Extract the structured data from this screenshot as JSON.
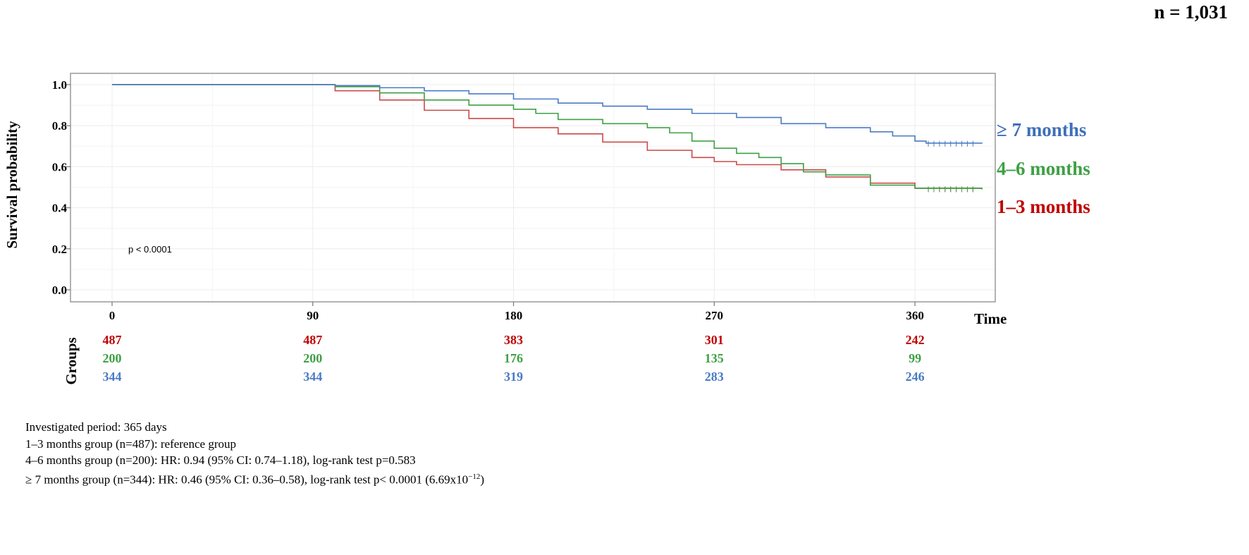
{
  "sample_size_label": "n = 1,031",
  "chart_data": {
    "type": "line",
    "title": "",
    "xlabel": "Time",
    "ylabel": "Survival probability",
    "xlim": [
      0,
      390
    ],
    "ylim": [
      0,
      1
    ],
    "x_ticks": [
      "0",
      "90",
      "180",
      "270",
      "360"
    ],
    "y_ticks": [
      "0.0",
      "0.2",
      "0.4",
      "0.6",
      "0.8",
      "1.0"
    ],
    "annotation": "p < 0.0001",
    "grid": true,
    "legend_position": "right",
    "series": [
      {
        "name": "≥ 7 months",
        "color": "#4a7bc4",
        "x": [
          0,
          90,
          100,
          120,
          140,
          160,
          180,
          200,
          220,
          240,
          260,
          280,
          300,
          320,
          340,
          350,
          360,
          365,
          390
        ],
        "y": [
          1.0,
          1.0,
          0.995,
          0.985,
          0.97,
          0.955,
          0.93,
          0.91,
          0.895,
          0.88,
          0.86,
          0.84,
          0.81,
          0.79,
          0.77,
          0.75,
          0.725,
          0.715,
          0.712
        ]
      },
      {
        "name": "4–6 months",
        "color": "#3ea045",
        "x": [
          0,
          90,
          100,
          120,
          140,
          160,
          180,
          190,
          200,
          220,
          240,
          250,
          260,
          270,
          280,
          290,
          300,
          310,
          320,
          340,
          360,
          390
        ],
        "y": [
          1.0,
          1.0,
          0.99,
          0.96,
          0.925,
          0.9,
          0.88,
          0.86,
          0.83,
          0.81,
          0.79,
          0.765,
          0.725,
          0.69,
          0.665,
          0.645,
          0.615,
          0.575,
          0.56,
          0.51,
          0.495,
          0.49
        ]
      },
      {
        "name": "1–3 months",
        "color": "#c94a4a",
        "x": [
          0,
          90,
          100,
          120,
          140,
          160,
          180,
          200,
          220,
          240,
          260,
          270,
          280,
          300,
          320,
          340,
          360,
          390
        ],
        "y": [
          1.0,
          1.0,
          0.97,
          0.925,
          0.875,
          0.835,
          0.79,
          0.76,
          0.72,
          0.68,
          0.645,
          0.625,
          0.61,
          0.585,
          0.55,
          0.52,
          0.495,
          0.49
        ]
      }
    ],
    "risk_table": {
      "label": "Groups",
      "time_points": [
        "0",
        "90",
        "180",
        "270",
        "360"
      ],
      "rows": [
        {
          "color": "#c00000",
          "values": [
            "487",
            "487",
            "383",
            "301",
            "242"
          ]
        },
        {
          "color": "#3ea045",
          "values": [
            "200",
            "200",
            "176",
            "135",
            "99"
          ]
        },
        {
          "color": "#4a7bc4",
          "values": [
            "344",
            "344",
            "319",
            "283",
            "246"
          ]
        }
      ]
    },
    "legend_labels": [
      {
        "text": "≥ 7 months",
        "color": "#3d6fb8"
      },
      {
        "text": "4–6 months",
        "color": "#3ea045"
      },
      {
        "text": "1–3 months",
        "color": "#c00000"
      }
    ]
  },
  "footnotes": {
    "period": "Investigated period: 365 days",
    "group1": "1–3 months group (n=487): reference group",
    "group2": "4–6 months group (n=200): HR: 0.94 (95% CI: 0.74–1.18), log-rank test p=0.583",
    "group3_prefix": "≥ 7 months group (n=344): HR: 0.46 (95% CI: 0.36–0.58), log-rank test p< 0.0001 (6.69x10",
    "group3_exp": "−12",
    "group3_suffix": ")"
  }
}
